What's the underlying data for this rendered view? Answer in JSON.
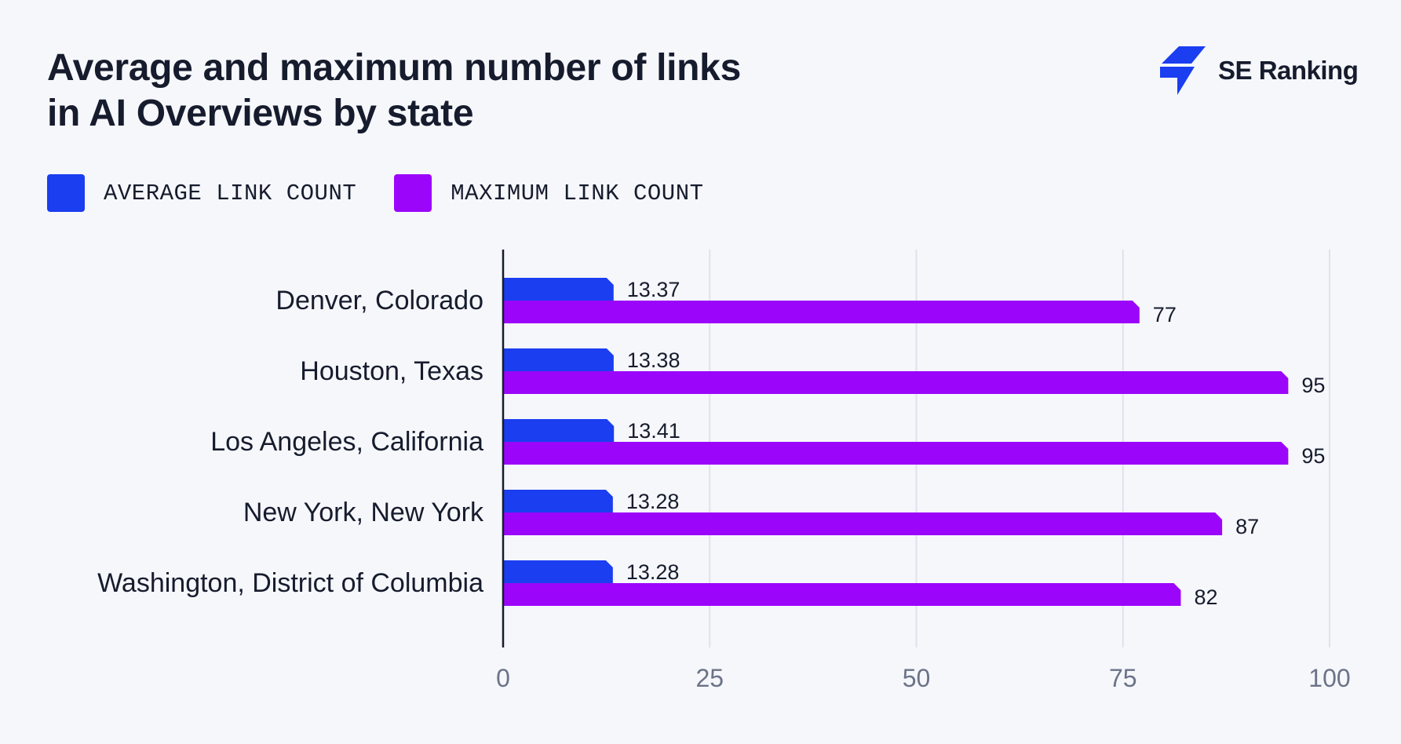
{
  "header": {
    "title_line1": "Average and maximum number of links",
    "title_line2": "in AI Overviews by state",
    "logo_icon": "se-ranking-logo-icon",
    "logo_text": "SE Ranking"
  },
  "colors": {
    "average": "#1a3ef0",
    "maximum": "#9b06fb",
    "grid": "#dfe2ec",
    "axis": "#161c2d"
  },
  "chart_data": {
    "type": "bar",
    "orientation": "horizontal",
    "title": "Average and maximum number of links in AI Overviews by state",
    "categories": [
      "Denver, Colorado",
      "Houston, Texas",
      "Los Angeles, California",
      "New York, New York",
      "Washington, District of Columbia"
    ],
    "series": [
      {
        "name": "AVERAGE LINK COUNT",
        "values": [
          13.37,
          13.38,
          13.41,
          13.28,
          13.28
        ],
        "labels": [
          "13.37",
          "13.38",
          "13.41",
          "13.28",
          "13.28"
        ]
      },
      {
        "name": "MAXIMUM LINK COUNT",
        "values": [
          77,
          95,
          95,
          87,
          82
        ],
        "labels": [
          "77",
          "95",
          "95",
          "87",
          "82"
        ]
      }
    ],
    "xlim": [
      0,
      100
    ],
    "xticks": [
      0,
      25,
      50,
      75,
      100
    ],
    "xtick_labels": [
      "0",
      "25",
      "50",
      "75",
      "100"
    ],
    "grid": "vertical",
    "legend": "top-left"
  }
}
